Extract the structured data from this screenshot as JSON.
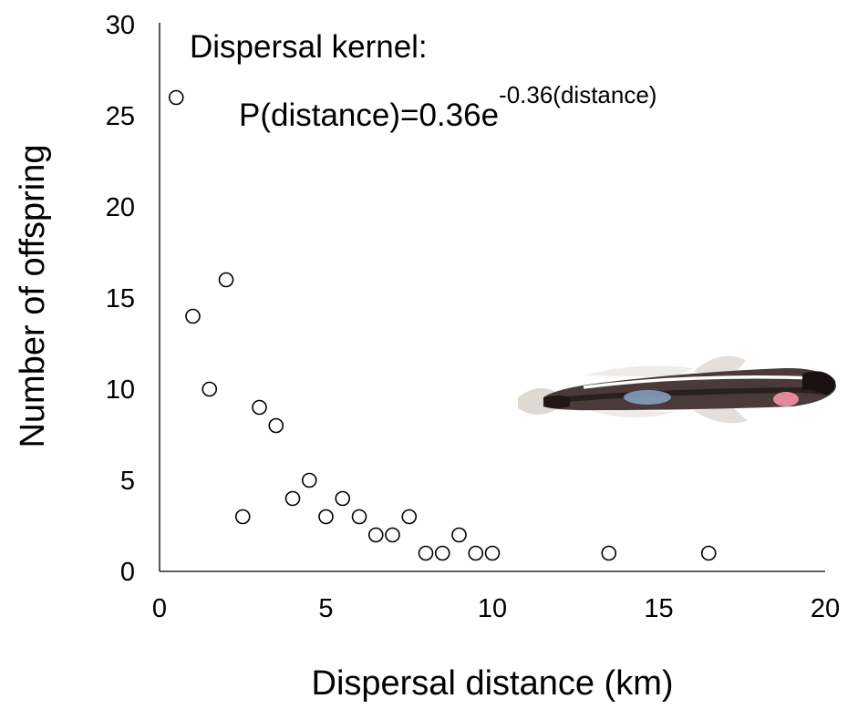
{
  "chart_data": {
    "type": "scatter",
    "title": "",
    "xlabel": "Dispersal distance (km)",
    "ylabel": "Number of offspring",
    "xlim": [
      0,
      20
    ],
    "ylim": [
      0,
      30
    ],
    "x_ticks": [
      "0",
      "5",
      "10",
      "15",
      "20"
    ],
    "y_ticks": [
      "0",
      "5",
      "10",
      "15",
      "20",
      "25",
      "30"
    ],
    "grid": false,
    "legend": "none",
    "marker": "open-circle",
    "annotation": {
      "line1": "Dispersal kernel:",
      "formula_base": "P(distance)=0.36e",
      "formula_exponent": "-0.36(distance)"
    },
    "image": "fish-photo",
    "series": [
      {
        "x": [
          0.5,
          1.0,
          1.5,
          2.0,
          2.5,
          3.0,
          3.5,
          4.0,
          4.5,
          5.0,
          5.5,
          6.0,
          6.5,
          7.0,
          7.5,
          8.0,
          8.5,
          9.0,
          9.5,
          10.0,
          13.5,
          16.5
        ],
        "y": [
          26,
          14,
          10,
          16,
          3,
          9,
          8,
          4,
          5,
          3,
          4,
          3,
          2,
          2,
          3,
          1,
          1,
          2,
          1,
          1,
          1,
          1
        ]
      }
    ]
  }
}
